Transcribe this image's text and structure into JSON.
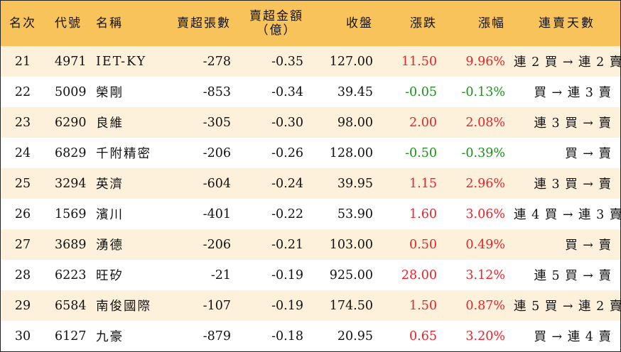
{
  "headers": {
    "rank": "名次",
    "code": "代號",
    "name": "名稱",
    "net_sell_lots": "賣超張數",
    "net_sell_amount_line1": "賣超金額",
    "net_sell_amount_line2": "（億）",
    "close": "收盤",
    "change": "漲跌",
    "change_pct": "漲幅",
    "streak": "連賣天數"
  },
  "colors": {
    "header_bg": "#f8c35b",
    "row_alt_bg": "#fdf1dc",
    "up": "#e8242a",
    "down": "#1e8f1e"
  },
  "rows": [
    {
      "rank": "21",
      "code": "4971",
      "name": "IET-KY",
      "lots": "-278",
      "amount": "-0.35",
      "close": "127.00",
      "change": "11.50",
      "pct": "9.96%",
      "dir": "up",
      "streak": "連 2 買 → 連 2 賣"
    },
    {
      "rank": "22",
      "code": "5009",
      "name": "榮剛",
      "lots": "-853",
      "amount": "-0.34",
      "close": "39.45",
      "change": "-0.05",
      "pct": "-0.13%",
      "dir": "down",
      "streak": "買 → 連 3 賣"
    },
    {
      "rank": "23",
      "code": "6290",
      "name": "良維",
      "lots": "-305",
      "amount": "-0.30",
      "close": "98.00",
      "change": "2.00",
      "pct": "2.08%",
      "dir": "up",
      "streak": "連 3 買 → 賣"
    },
    {
      "rank": "24",
      "code": "6829",
      "name": "千附精密",
      "lots": "-206",
      "amount": "-0.26",
      "close": "128.00",
      "change": "-0.50",
      "pct": "-0.39%",
      "dir": "down",
      "streak": "買 → 賣"
    },
    {
      "rank": "25",
      "code": "3294",
      "name": "英濟",
      "lots": "-604",
      "amount": "-0.24",
      "close": "39.95",
      "change": "1.15",
      "pct": "2.96%",
      "dir": "up",
      "streak": "連 3 買 → 賣"
    },
    {
      "rank": "26",
      "code": "1569",
      "name": "濱川",
      "lots": "-401",
      "amount": "-0.22",
      "close": "53.90",
      "change": "1.60",
      "pct": "3.06%",
      "dir": "up",
      "streak": "連 4 買 → 連 3 賣"
    },
    {
      "rank": "27",
      "code": "3689",
      "name": "湧德",
      "lots": "-206",
      "amount": "-0.21",
      "close": "103.00",
      "change": "0.50",
      "pct": "0.49%",
      "dir": "up",
      "streak": "買 → 賣"
    },
    {
      "rank": "28",
      "code": "6223",
      "name": "旺矽",
      "lots": "-21",
      "amount": "-0.19",
      "close": "925.00",
      "change": "28.00",
      "pct": "3.12%",
      "dir": "up",
      "streak": "連 5 買 → 賣"
    },
    {
      "rank": "29",
      "code": "6584",
      "name": "南俊國際",
      "lots": "-107",
      "amount": "-0.19",
      "close": "174.50",
      "change": "1.50",
      "pct": "0.87%",
      "dir": "up",
      "streak": "連 5 買 → 連 2 賣"
    },
    {
      "rank": "30",
      "code": "6127",
      "name": "九豪",
      "lots": "-879",
      "amount": "-0.18",
      "close": "20.95",
      "change": "0.65",
      "pct": "3.20%",
      "dir": "up",
      "streak": "買 → 連 4 賣"
    }
  ]
}
